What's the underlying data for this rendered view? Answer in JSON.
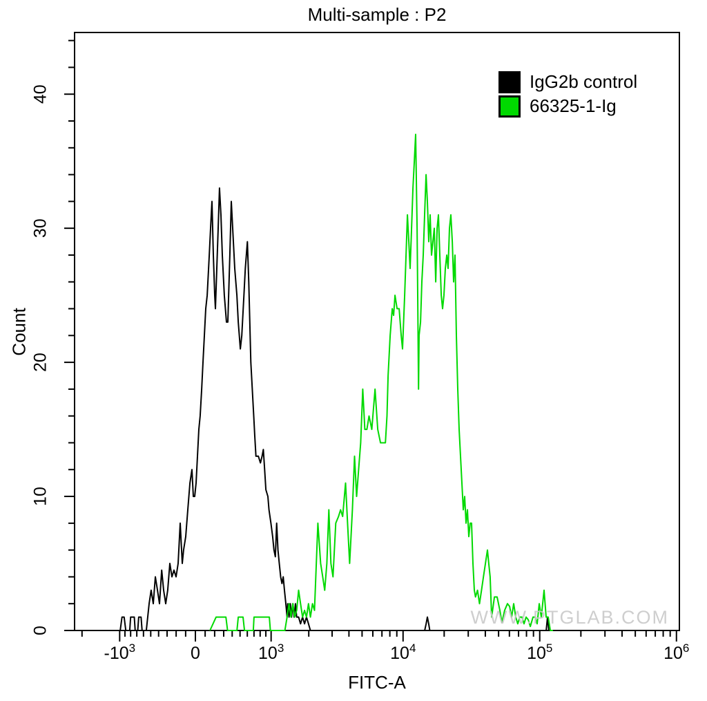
{
  "title": "Multi-sample : P2",
  "watermark": "WWW.PTGLAB.COM",
  "colors": {
    "axis": "#000000",
    "control_series": "#000000",
    "antibody_series": "#00D900",
    "watermark": "#c9c9c9"
  },
  "legend": {
    "items": [
      {
        "label": "IgG2b control",
        "color": "#000000"
      },
      {
        "label": "66325-1-Ig",
        "color": "#00D900"
      }
    ]
  },
  "chart_data": {
    "type": "line",
    "subtype": "flow-cytometry-histogram",
    "title": "Multi-sample : P2",
    "xlabel": "FITC-A",
    "ylabel": "Count",
    "x_axis": {
      "scale": "asinh",
      "asinh_scale_param": 606,
      "range": [
        -2280,
        1050000
      ],
      "major_ticks": [
        {
          "v": -1000,
          "base": "-10",
          "exp": "3"
        },
        {
          "v": 0,
          "base": "0",
          "exp": ""
        },
        {
          "v": 1000,
          "base": "10",
          "exp": "3"
        },
        {
          "v": 10000,
          "base": "10",
          "exp": "4"
        },
        {
          "v": 100000,
          "base": "10",
          "exp": "5"
        },
        {
          "v": 1000000,
          "base": "10",
          "exp": "6"
        }
      ],
      "minor_ticks": [
        -2000,
        -900,
        -800,
        -700,
        -600,
        -500,
        -400,
        -300,
        -200,
        -100,
        100,
        200,
        300,
        400,
        500,
        600,
        700,
        800,
        900,
        2000,
        3000,
        4000,
        5000,
        6000,
        7000,
        8000,
        9000,
        20000,
        30000,
        40000,
        50000,
        60000,
        70000,
        80000,
        90000,
        200000,
        300000,
        400000,
        500000,
        600000,
        700000,
        800000,
        900000
      ]
    },
    "y_axis": {
      "scale": "linear",
      "range": [
        0,
        44.6
      ],
      "major_ticks": [
        0,
        10,
        20,
        30,
        40
      ],
      "minor_step": 2
    },
    "series": [
      {
        "name": "IgG2b control",
        "color": "#000000",
        "points": [
          [
            -2280,
            0
          ],
          [
            -990,
            0
          ],
          [
            -955,
            1
          ],
          [
            -915,
            1
          ],
          [
            -885,
            0
          ],
          [
            -815,
            0
          ],
          [
            -800,
            1
          ],
          [
            -740,
            1
          ],
          [
            -725,
            0
          ],
          [
            -685,
            0
          ],
          [
            -670,
            1
          ],
          [
            -635,
            1
          ],
          [
            -620,
            0
          ],
          [
            -560,
            0
          ],
          [
            -521,
            2
          ],
          [
            -495,
            3
          ],
          [
            -467,
            2
          ],
          [
            -440,
            4
          ],
          [
            -414,
            3
          ],
          [
            -389,
            2
          ],
          [
            -363,
            4.5
          ],
          [
            -340,
            3
          ],
          [
            -316,
            2
          ],
          [
            -293,
            3
          ],
          [
            -269,
            5
          ],
          [
            -246,
            4
          ],
          [
            -223,
            4.5
          ],
          [
            -201,
            4
          ],
          [
            -179,
            5
          ],
          [
            -157,
            8
          ],
          [
            -135,
            5
          ],
          [
            -121,
            6
          ],
          [
            -99,
            7
          ],
          [
            -78,
            9
          ],
          [
            -56,
            11
          ],
          [
            -35,
            12
          ],
          [
            -21,
            10
          ],
          [
            -7,
            10
          ],
          [
            7,
            11
          ],
          [
            21,
            13
          ],
          [
            35,
            15
          ],
          [
            49,
            16
          ],
          [
            64,
            18
          ],
          [
            78,
            20
          ],
          [
            92,
            22
          ],
          [
            106,
            24
          ],
          [
            121,
            25
          ],
          [
            143,
            28
          ],
          [
            157,
            30
          ],
          [
            171,
            32
          ],
          [
            186,
            28
          ],
          [
            201,
            25
          ],
          [
            208,
            24
          ],
          [
            223,
            27
          ],
          [
            238,
            30
          ],
          [
            253,
            33
          ],
          [
            269,
            31
          ],
          [
            284,
            28
          ],
          [
            307,
            25
          ],
          [
            332,
            23
          ],
          [
            348,
            23
          ],
          [
            372,
            28
          ],
          [
            389,
            32
          ],
          [
            406,
            30
          ],
          [
            432,
            27
          ],
          [
            459,
            25
          ],
          [
            477,
            23
          ],
          [
            504,
            21
          ],
          [
            523,
            22
          ],
          [
            552,
            25
          ],
          [
            572,
            27
          ],
          [
            601,
            29
          ],
          [
            621,
            26
          ],
          [
            641,
            22
          ],
          [
            652,
            20
          ],
          [
            674,
            18
          ],
          [
            696,
            16
          ],
          [
            712,
            14.5
          ],
          [
            731,
            13
          ],
          [
            770,
            13
          ],
          [
            805,
            12.5
          ],
          [
            833,
            13
          ],
          [
            855,
            13.5
          ],
          [
            878,
            12
          ],
          [
            901,
            10.5
          ],
          [
            938,
            10
          ],
          [
            959,
            9
          ],
          [
            996,
            8
          ],
          [
            1030,
            7
          ],
          [
            1057,
            6
          ],
          [
            1086,
            5.5
          ],
          [
            1114,
            8
          ],
          [
            1142,
            6
          ],
          [
            1171,
            5
          ],
          [
            1202,
            4
          ],
          [
            1231,
            3.5
          ],
          [
            1261,
            4
          ],
          [
            1291,
            3
          ],
          [
            1324,
            2
          ],
          [
            1355,
            1
          ],
          [
            1371,
            2
          ],
          [
            1404,
            1
          ],
          [
            1437,
            2
          ],
          [
            1471,
            1
          ],
          [
            1506,
            2
          ],
          [
            1541,
            1
          ],
          [
            1577,
            2
          ],
          [
            1614,
            1
          ],
          [
            1671,
            1
          ],
          [
            1730,
            0.5
          ],
          [
            1792,
            1
          ],
          [
            1856,
            0.5
          ],
          [
            1922,
            1
          ],
          [
            1991,
            0.5
          ],
          [
            2060,
            0
          ],
          [
            14400,
            0
          ],
          [
            14750,
            0.5
          ],
          [
            15074,
            1
          ],
          [
            15400,
            0.5
          ],
          [
            15700,
            0
          ],
          [
            111500,
            0
          ],
          [
            114000,
            1
          ],
          [
            116500,
            0
          ],
          [
            1050000,
            0
          ]
        ]
      },
      {
        "name": "66325-1-Ig",
        "color": "#00D900",
        "points": [
          [
            150,
            0
          ],
          [
            216,
            1
          ],
          [
            325,
            1
          ],
          [
            345,
            0
          ],
          [
            460,
            0
          ],
          [
            477,
            1
          ],
          [
            540,
            1
          ],
          [
            560,
            0
          ],
          [
            690,
            0
          ],
          [
            700,
            1
          ],
          [
            966,
            1
          ],
          [
            985,
            0
          ],
          [
            1300,
            0
          ],
          [
            1355,
            1
          ],
          [
            1403,
            2
          ],
          [
            1454,
            1
          ],
          [
            1505,
            2
          ],
          [
            1557,
            1
          ],
          [
            1613,
            1.5
          ],
          [
            1671,
            3
          ],
          [
            1730,
            2
          ],
          [
            1792,
            1
          ],
          [
            1856,
            1.5
          ],
          [
            1922,
            1
          ],
          [
            1991,
            2
          ],
          [
            2060,
            1
          ],
          [
            2134,
            2
          ],
          [
            2211,
            1.5
          ],
          [
            2345,
            8
          ],
          [
            2460,
            5
          ],
          [
            2550,
            4
          ],
          [
            2642,
            3
          ],
          [
            2739,
            5
          ],
          [
            2836,
            9
          ],
          [
            2939,
            5
          ],
          [
            3045,
            4
          ],
          [
            3193,
            8
          ],
          [
            3347,
            8.5
          ],
          [
            3469,
            9
          ],
          [
            3595,
            8.5
          ],
          [
            3774,
            11
          ],
          [
            3906,
            8
          ],
          [
            4048,
            5
          ],
          [
            4244,
            9
          ],
          [
            4397,
            13
          ],
          [
            4556,
            10
          ],
          [
            4713,
            12
          ],
          [
            4884,
            14
          ],
          [
            5060,
            18
          ],
          [
            5241,
            15
          ],
          [
            5429,
            15
          ],
          [
            5624,
            16
          ],
          [
            5896,
            15
          ],
          [
            6227,
            18
          ],
          [
            6516,
            15
          ],
          [
            6833,
            14
          ],
          [
            7163,
            14
          ],
          [
            7417,
            14
          ],
          [
            7620,
            16
          ],
          [
            7766,
            19
          ],
          [
            8045,
            22
          ],
          [
            8330,
            24
          ],
          [
            8530,
            23.5
          ],
          [
            8723,
            25
          ],
          [
            9035,
            24
          ],
          [
            9357,
            24
          ],
          [
            9690,
            22
          ],
          [
            9914,
            21
          ],
          [
            10270,
            25
          ],
          [
            10517,
            28
          ],
          [
            10763,
            31
          ],
          [
            11014,
            29
          ],
          [
            11269,
            27
          ],
          [
            11542,
            30
          ],
          [
            11811,
            33
          ],
          [
            12086,
            35
          ],
          [
            12366,
            37
          ],
          [
            12666,
            30
          ],
          [
            12805,
            25
          ],
          [
            12980,
            18
          ],
          [
            13104,
            22
          ],
          [
            13423,
            23
          ],
          [
            13735,
            26
          ],
          [
            14054,
            28
          ],
          [
            14381,
            31
          ],
          [
            14730,
            34
          ],
          [
            15074,
            32
          ],
          [
            15423,
            29
          ],
          [
            15782,
            31
          ],
          [
            16166,
            28
          ],
          [
            16544,
            29
          ],
          [
            16928,
            30
          ],
          [
            17338,
            26
          ],
          [
            17744,
            30
          ],
          [
            18155,
            31
          ],
          [
            18577,
            28
          ],
          [
            19029,
            25
          ],
          [
            19471,
            24
          ],
          [
            19925,
            25
          ],
          [
            20389,
            27
          ],
          [
            20883,
            28
          ],
          [
            21368,
            27
          ],
          [
            21868,
            30
          ],
          [
            22376,
            31
          ],
          [
            22919,
            29
          ],
          [
            23452,
            26
          ],
          [
            23998,
            28
          ],
          [
            24555,
            22
          ],
          [
            25152,
            18
          ],
          [
            25737,
            15
          ],
          [
            26337,
            13
          ],
          [
            26949,
            11
          ],
          [
            27603,
            9
          ],
          [
            28246,
            10
          ],
          [
            28903,
            8
          ],
          [
            29576,
            9
          ],
          [
            30294,
            7
          ],
          [
            31000,
            8
          ],
          [
            31724,
            8
          ],
          [
            32452,
            5
          ],
          [
            33240,
            3
          ],
          [
            33900,
            2.5
          ],
          [
            35050,
            3
          ],
          [
            36250,
            2
          ],
          [
            37490,
            3
          ],
          [
            38760,
            4
          ],
          [
            40080,
            5
          ],
          [
            41440,
            6
          ],
          [
            42400,
            5
          ],
          [
            43400,
            4
          ],
          [
            44500,
            1
          ],
          [
            46600,
            2.5
          ],
          [
            48800,
            2.5
          ],
          [
            51100,
            1.5
          ],
          [
            52900,
            0.6
          ],
          [
            55400,
            1.5
          ],
          [
            58100,
            2
          ],
          [
            60200,
            1.8
          ],
          [
            62300,
            1
          ],
          [
            64500,
            2
          ],
          [
            66800,
            1
          ],
          [
            69100,
            0.5
          ],
          [
            71600,
            1
          ],
          [
            74100,
            1
          ],
          [
            76800,
            0.5
          ],
          [
            79500,
            1
          ],
          [
            82400,
            0.8
          ],
          [
            85300,
            0.3
          ],
          [
            89300,
            1
          ],
          [
            92500,
            1
          ],
          [
            95800,
            0.5
          ],
          [
            99200,
            2
          ],
          [
            102700,
            1
          ],
          [
            107500,
            3
          ],
          [
            111400,
            1
          ],
          [
            115400,
            1
          ],
          [
            119500,
            0
          ],
          [
            125000,
            0
          ]
        ]
      }
    ],
    "legend_position": "top-right",
    "grid": false
  }
}
